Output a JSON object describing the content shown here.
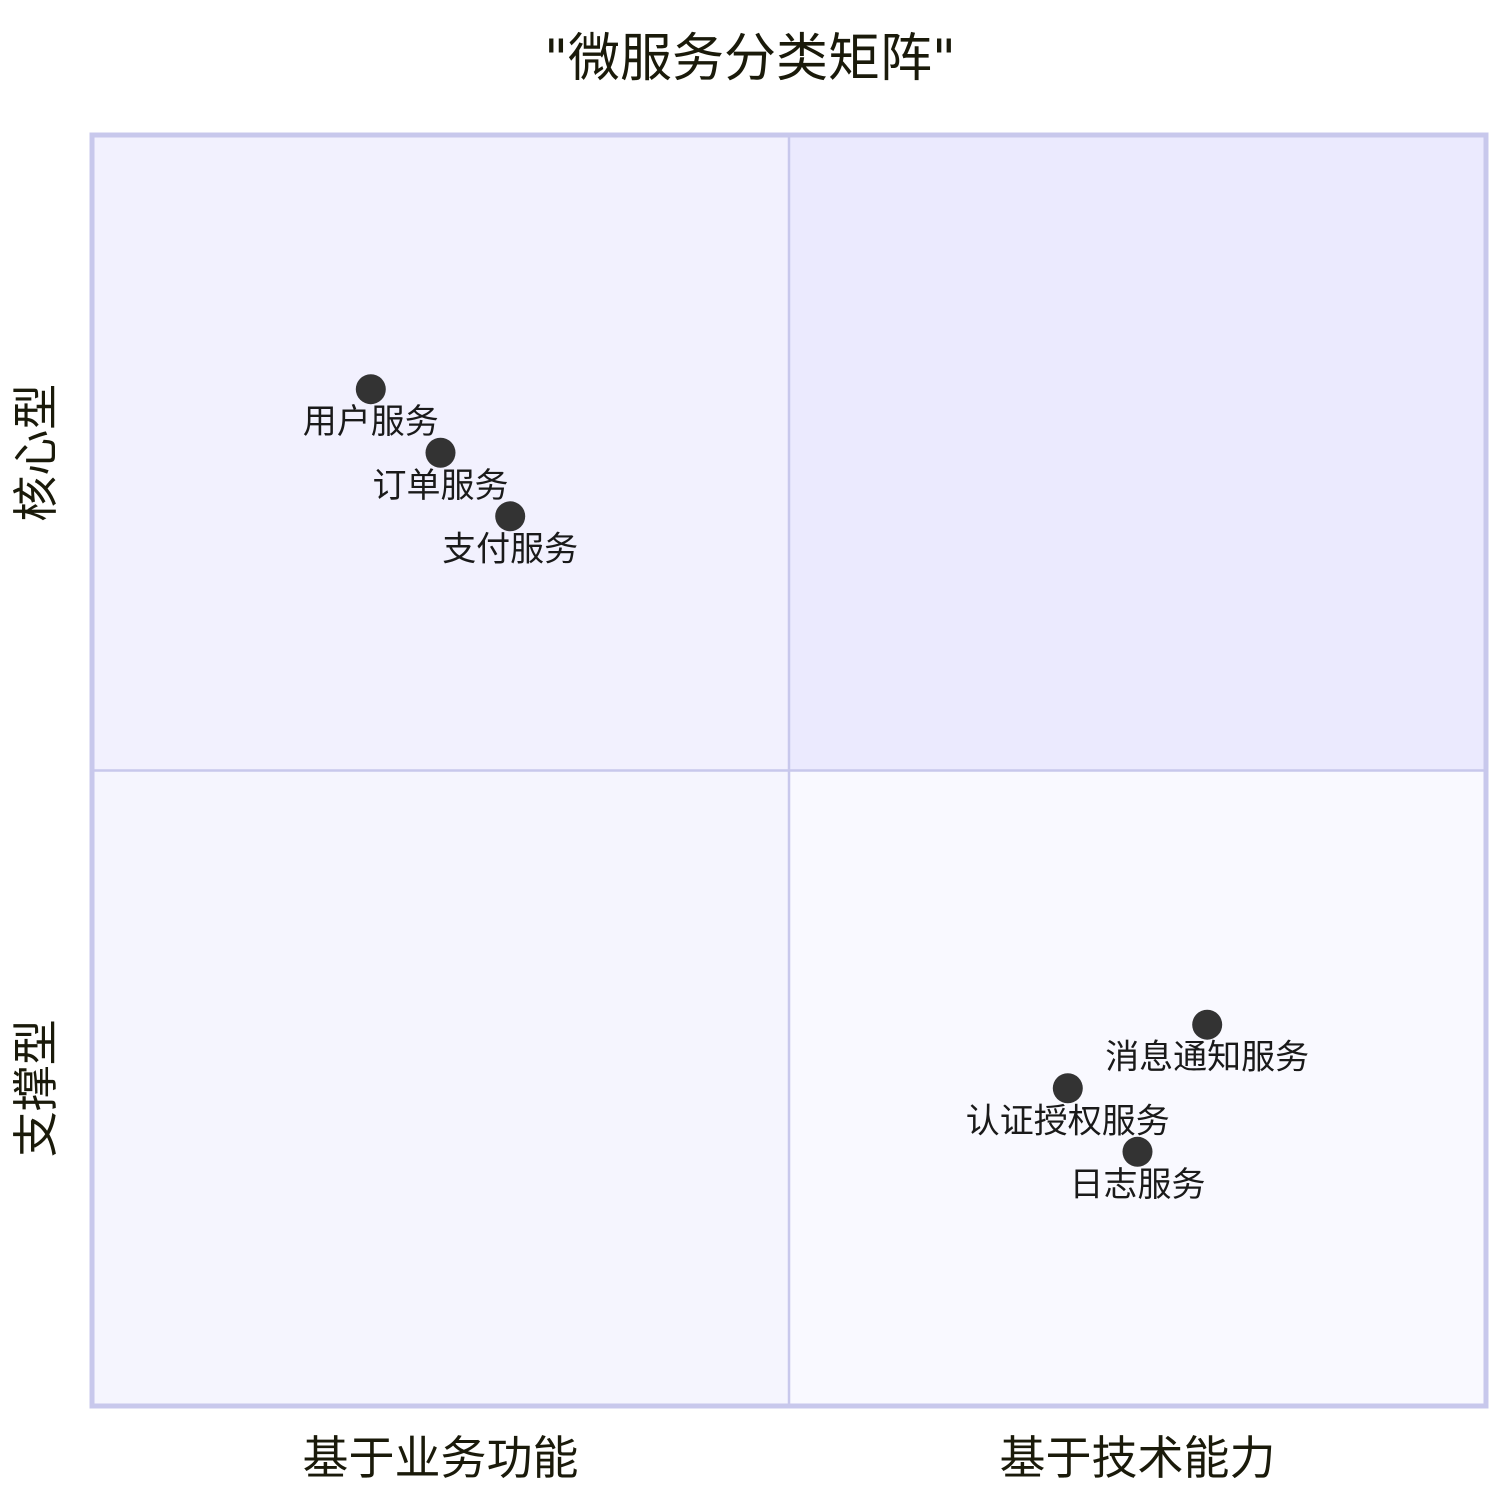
{
  "chart_data": {
    "type": "scatter",
    "title": "\"微服务分类矩阵\"",
    "x_axis": {
      "left_label": "基于业务功能",
      "right_label": "基于技术能力",
      "range": [
        0,
        1
      ]
    },
    "y_axis": {
      "bottom_label": "支撑型",
      "top_label": "核心型",
      "range": [
        0,
        1
      ]
    },
    "quadrant_colors": {
      "top_left": "#f2f1fe",
      "top_right": "#ebeafe",
      "bottom_left": "#f5f5fe",
      "bottom_right": "#f9f9ff",
      "border": "#c8c8ec",
      "point": "#333333"
    },
    "points": [
      {
        "label": "用户服务",
        "x": 0.2,
        "y": 0.8
      },
      {
        "label": "订单服务",
        "x": 0.25,
        "y": 0.75
      },
      {
        "label": "支付服务",
        "x": 0.3,
        "y": 0.7
      },
      {
        "label": "认证授权服务",
        "x": 0.7,
        "y": 0.25
      },
      {
        "label": "日志服务",
        "x": 0.75,
        "y": 0.2
      },
      {
        "label": "消息通知服务",
        "x": 0.8,
        "y": 0.3
      }
    ]
  }
}
